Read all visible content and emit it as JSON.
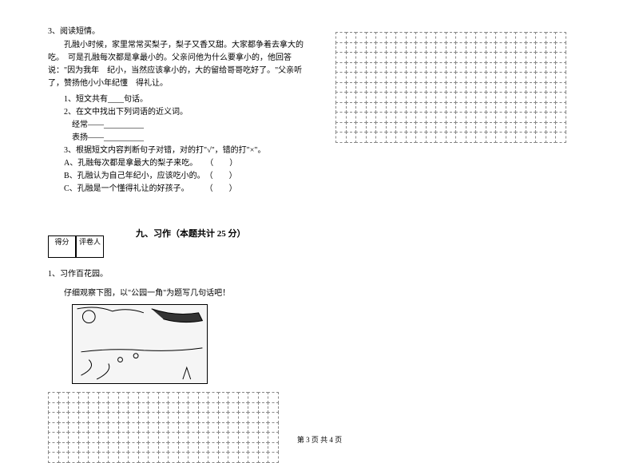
{
  "reading": {
    "header": "3、阅读短情。",
    "passage": "孔融小时候，家里常常买梨子，梨子又香又甜。大家都争着去拿大的吃。　可是孔融每次都是拿最小的。父亲问他为什么要拿小的，他回答说：\"因为我年　纪小，当然应该拿小的，大的留给哥哥吃好了。\"父亲听了，赞扬他小小年纪懂　得礼让。",
    "q1": "1、短文共有____句话。",
    "q2": "2、在文中找出下列词语的近义词。",
    "q2a": "经常——__________",
    "q2b": "表扬——__________",
    "q3": "3、根据短文内容判断句子对错，对的打\"√\"，错的打\"×\"。",
    "q3a": "A、孔融每次都是拿最大的梨子来吃。　　（　　）",
    "q3b": "B、孔融认为自己年纪小，应该吃小的。　（　　）",
    "q3c": "C、孔融是一个懂得礼让的好孩子。　　　（　　）"
  },
  "section9": {
    "score_label1": "得分",
    "score_label2": "评卷人",
    "title": "九、习作（本题共计 25 分）",
    "sub1": "1、习作百花园。",
    "sub2": "仔细观察下图，以\"公园一角\"为题写几句话吧！"
  },
  "image": {
    "alt": "公园一角插图"
  },
  "grid": {
    "left_rows": 7,
    "left_cols": 23,
    "right_rows": 11,
    "right_cols": 23
  },
  "footer": "第 3 页 共 4 页",
  "colors": {
    "text": "#000000",
    "grid_border": "#888888",
    "background": "#ffffff"
  }
}
